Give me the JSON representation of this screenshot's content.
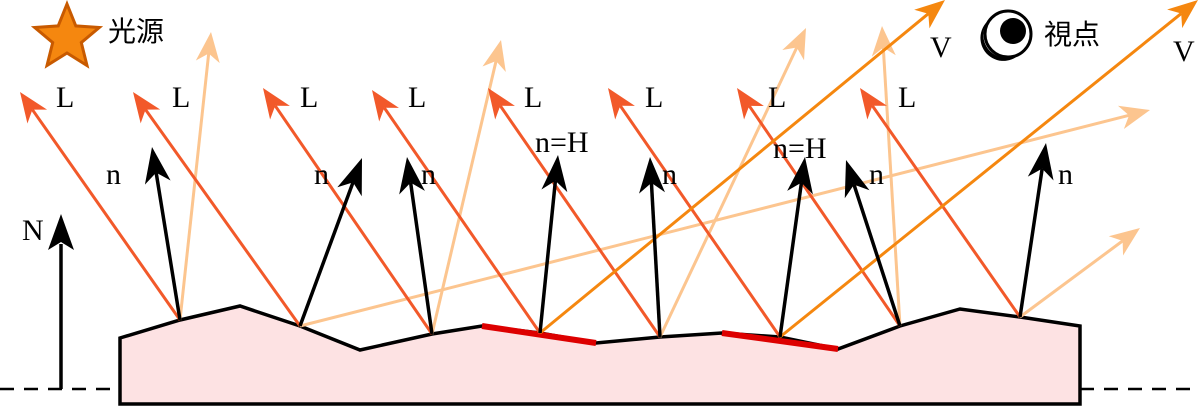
{
  "legend": {
    "light_source_label": "光源",
    "viewpoint_label": "視点"
  },
  "labels": {
    "light": "L",
    "normal": "n",
    "macro_normal": "N",
    "view": "V",
    "half": "n=H"
  },
  "colors": {
    "light_ray": "#f2592a",
    "reflected_faint": "#fcc58f",
    "view_ray": "#f5870f",
    "normal": "#000000",
    "surface_fill": "#fde2e3",
    "surface_stroke": "#000000",
    "highlight_facet": "#dd0000",
    "star_fill": "#f5870f",
    "star_stroke": "#c85a00"
  }
}
